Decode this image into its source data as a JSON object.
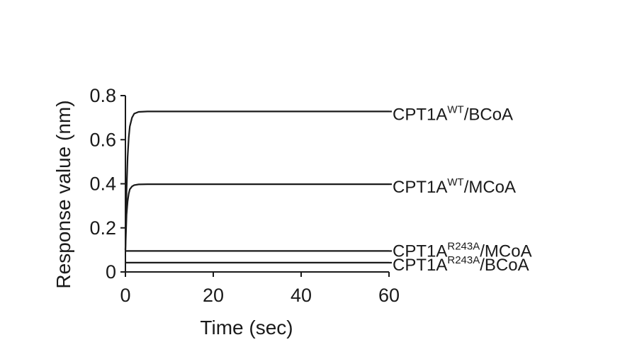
{
  "chart_data": {
    "type": "line",
    "title": "",
    "xlabel": "Time (sec)",
    "ylabel": "Response value (nm)",
    "xlim": [
      0,
      60
    ],
    "ylim": [
      0,
      0.8
    ],
    "x_ticks": [
      {
        "value": 0,
        "label": "0"
      },
      {
        "value": 20,
        "label": "20"
      },
      {
        "value": 40,
        "label": "40"
      },
      {
        "value": 60,
        "label": "60"
      }
    ],
    "y_ticks": [
      {
        "value": 0,
        "label": "0"
      },
      {
        "value": 0.2,
        "label": "0.2"
      },
      {
        "value": 0.4,
        "label": "0.4"
      },
      {
        "value": 0.6,
        "label": "0.6"
      },
      {
        "value": 0.8,
        "label": "0.8"
      }
    ],
    "grid": false,
    "legend": "inline-right",
    "series": [
      {
        "label_base": "CPT1A",
        "label_sup": "WT",
        "label_suffix": "/BCoA",
        "x": [
          0,
          0.25,
          0.5,
          0.75,
          1,
          1.5,
          2,
          3,
          5,
          10,
          20,
          30,
          40,
          50,
          60
        ],
        "values": [
          0.1,
          0.37,
          0.52,
          0.61,
          0.66,
          0.7,
          0.718,
          0.726,
          0.728,
          0.728,
          0.728,
          0.728,
          0.728,
          0.728,
          0.728
        ]
      },
      {
        "label_base": "CPT1A",
        "label_sup": "WT",
        "label_suffix": "/MCoA",
        "x": [
          0,
          0.25,
          0.5,
          0.75,
          1,
          1.5,
          2,
          3,
          5,
          10,
          20,
          30,
          40,
          50,
          60
        ],
        "values": [
          0.1,
          0.26,
          0.32,
          0.355,
          0.375,
          0.388,
          0.394,
          0.397,
          0.398,
          0.398,
          0.398,
          0.398,
          0.398,
          0.398,
          0.398
        ]
      },
      {
        "label_base": "CPT1A",
        "label_sup": "R243A",
        "label_suffix": "/MCoA",
        "x": [
          0,
          60
        ],
        "values": [
          0.095,
          0.095
        ]
      },
      {
        "label_base": "CPT1A",
        "label_sup": "R243A",
        "label_suffix": "/BCoA",
        "x": [
          0,
          60
        ],
        "values": [
          0.042,
          0.042
        ]
      }
    ]
  }
}
